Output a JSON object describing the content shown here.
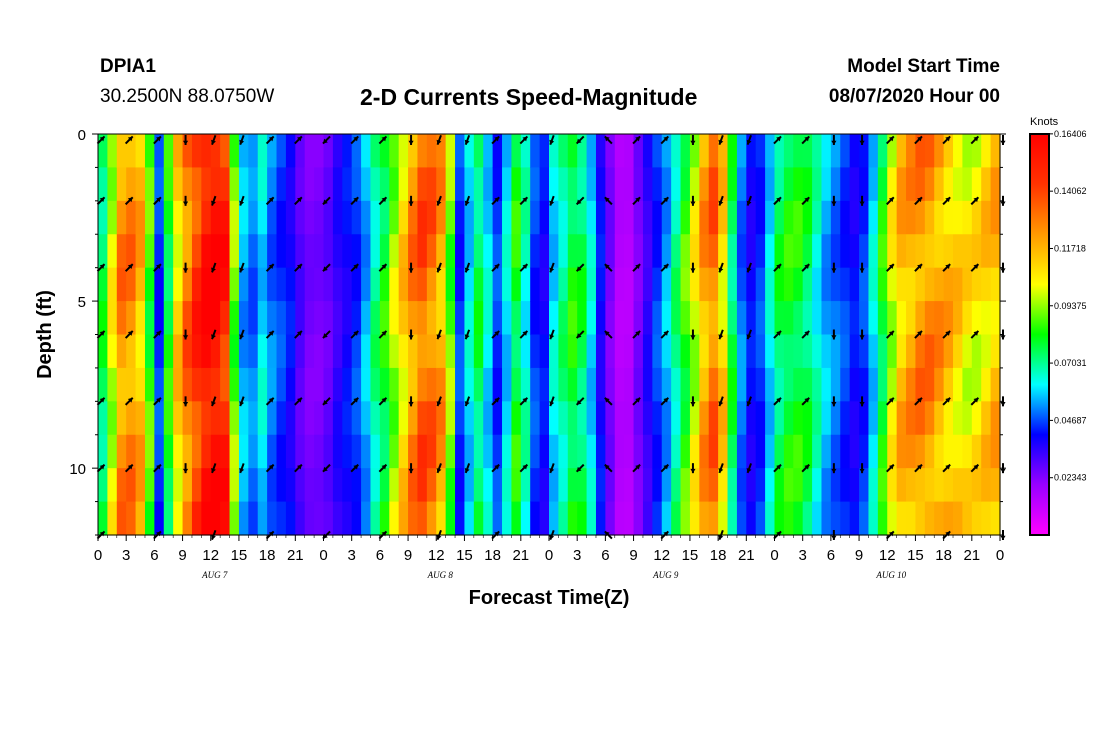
{
  "header": {
    "station_id": "DPIA1",
    "coordinates": "30.2500N 88.0750W",
    "title": "2-D Currents Speed-Magnitude",
    "model_start_label": "Model Start Time",
    "model_start_value": "08/07/2020 Hour 00"
  },
  "colors": {
    "scale": [
      "#ff00ff",
      "#9900ff",
      "#0000ff",
      "#00ffff",
      "#00ff00",
      "#ffff00",
      "#ff9900",
      "#ff3300",
      "#ff0000"
    ],
    "arrow": "#000000",
    "frame": "#000000"
  },
  "chart_data": {
    "type": "heatmap",
    "xlabel": "Forecast Time(Z)",
    "ylabel": "Depth (ft)",
    "x_unit": "hours since 08/07/2020 00Z",
    "x_range": [
      0,
      96
    ],
    "y_range": [
      0,
      12
    ],
    "y_inverted": true,
    "x_tick_labels": [
      "0",
      "3",
      "6",
      "9",
      "12",
      "15",
      "18",
      "21",
      "0",
      "3",
      "6",
      "9",
      "12",
      "15",
      "18",
      "21",
      "0",
      "3",
      "6",
      "9",
      "12",
      "15",
      "18",
      "21",
      "0",
      "3",
      "6",
      "9",
      "12",
      "15",
      "18",
      "21",
      "0"
    ],
    "date_labels": [
      {
        "label": "AUG 7",
        "hour": 12
      },
      {
        "label": "AUG 8",
        "hour": 36
      },
      {
        "label": "AUG 9",
        "hour": 60
      },
      {
        "label": "AUG 10",
        "hour": 84
      }
    ],
    "y_ticks": [
      0,
      5,
      10
    ],
    "colorbar": {
      "unit": "Knots",
      "min": 0.0,
      "max": 0.164,
      "tick_labels": [
        "0.16406",
        "0.14062",
        "0.11718",
        "0.09375",
        "0.07031",
        "0.04687",
        "0.02343"
      ],
      "tick_values": [
        0.16406,
        0.14062,
        0.11718,
        0.09375,
        0.07031,
        0.04687,
        0.02343
      ]
    },
    "speed_profile_by_hour": [
      {
        "h": 0,
        "v": 0.075
      },
      {
        "h": 1,
        "v": 0.1
      },
      {
        "h": 2,
        "v": 0.125
      },
      {
        "h": 3,
        "v": 0.125
      },
      {
        "h": 4,
        "v": 0.115
      },
      {
        "h": 5,
        "v": 0.085
      },
      {
        "h": 6,
        "v": 0.045
      },
      {
        "h": 7,
        "v": 0.08
      },
      {
        "h": 8,
        "v": 0.11
      },
      {
        "h": 9,
        "v": 0.13
      },
      {
        "h": 10,
        "v": 0.145
      },
      {
        "h": 11,
        "v": 0.158
      },
      {
        "h": 12,
        "v": 0.16
      },
      {
        "h": 13,
        "v": 0.15
      },
      {
        "h": 14,
        "v": 0.09
      },
      {
        "h": 15,
        "v": 0.055
      },
      {
        "h": 16,
        "v": 0.05
      },
      {
        "h": 17,
        "v": 0.06
      },
      {
        "h": 18,
        "v": 0.05
      },
      {
        "h": 19,
        "v": 0.045
      },
      {
        "h": 20,
        "v": 0.04
      },
      {
        "h": 21,
        "v": 0.03
      },
      {
        "h": 22,
        "v": 0.025
      },
      {
        "h": 23,
        "v": 0.025
      },
      {
        "h": 24,
        "v": 0.028
      },
      {
        "h": 25,
        "v": 0.035
      },
      {
        "h": 26,
        "v": 0.04
      },
      {
        "h": 27,
        "v": 0.045
      },
      {
        "h": 28,
        "v": 0.055
      },
      {
        "h": 29,
        "v": 0.07
      },
      {
        "h": 30,
        "v": 0.08
      },
      {
        "h": 31,
        "v": 0.095
      },
      {
        "h": 32,
        "v": 0.11
      },
      {
        "h": 33,
        "v": 0.125
      },
      {
        "h": 34,
        "v": 0.135
      },
      {
        "h": 35,
        "v": 0.13
      },
      {
        "h": 36,
        "v": 0.12
      },
      {
        "h": 37,
        "v": 0.09
      },
      {
        "h": 38,
        "v": 0.045
      },
      {
        "h": 39,
        "v": 0.06
      },
      {
        "h": 40,
        "v": 0.075
      },
      {
        "h": 41,
        "v": 0.06
      },
      {
        "h": 42,
        "v": 0.045
      },
      {
        "h": 43,
        "v": 0.06
      },
      {
        "h": 44,
        "v": 0.08
      },
      {
        "h": 45,
        "v": 0.065
      },
      {
        "h": 46,
        "v": 0.045
      },
      {
        "h": 47,
        "v": 0.04
      },
      {
        "h": 48,
        "v": 0.06
      },
      {
        "h": 49,
        "v": 0.07
      },
      {
        "h": 50,
        "v": 0.08
      },
      {
        "h": 51,
        "v": 0.075
      },
      {
        "h": 52,
        "v": 0.06
      },
      {
        "h": 53,
        "v": 0.04
      },
      {
        "h": 54,
        "v": 0.025
      },
      {
        "h": 55,
        "v": 0.015
      },
      {
        "h": 56,
        "v": 0.015
      },
      {
        "h": 57,
        "v": 0.025
      },
      {
        "h": 58,
        "v": 0.035
      },
      {
        "h": 59,
        "v": 0.045
      },
      {
        "h": 60,
        "v": 0.055
      },
      {
        "h": 61,
        "v": 0.07
      },
      {
        "h": 62,
        "v": 0.085
      },
      {
        "h": 63,
        "v": 0.1
      },
      {
        "h": 64,
        "v": 0.12
      },
      {
        "h": 65,
        "v": 0.13
      },
      {
        "h": 66,
        "v": 0.11
      },
      {
        "h": 67,
        "v": 0.075
      },
      {
        "h": 68,
        "v": 0.05
      },
      {
        "h": 69,
        "v": 0.04
      },
      {
        "h": 70,
        "v": 0.045
      },
      {
        "h": 71,
        "v": 0.06
      },
      {
        "h": 72,
        "v": 0.075
      },
      {
        "h": 73,
        "v": 0.08
      },
      {
        "h": 74,
        "v": 0.08
      },
      {
        "h": 75,
        "v": 0.075
      },
      {
        "h": 76,
        "v": 0.065
      },
      {
        "h": 77,
        "v": 0.055
      },
      {
        "h": 78,
        "v": 0.05
      },
      {
        "h": 79,
        "v": 0.045
      },
      {
        "h": 80,
        "v": 0.04
      },
      {
        "h": 81,
        "v": 0.045
      },
      {
        "h": 82,
        "v": 0.06
      },
      {
        "h": 83,
        "v": 0.08
      },
      {
        "h": 84,
        "v": 0.1
      },
      {
        "h": 85,
        "v": 0.115
      },
      {
        "h": 86,
        "v": 0.12
      },
      {
        "h": 87,
        "v": 0.125
      },
      {
        "h": 88,
        "v": 0.125
      },
      {
        "h": 89,
        "v": 0.12
      },
      {
        "h": 90,
        "v": 0.115
      },
      {
        "h": 91,
        "v": 0.11
      },
      {
        "h": 92,
        "v": 0.105
      },
      {
        "h": 93,
        "v": 0.105
      },
      {
        "h": 94,
        "v": 0.11
      },
      {
        "h": 95,
        "v": 0.115
      },
      {
        "h": 96,
        "v": 0.11
      }
    ],
    "arrow_depths_ft": [
      0,
      2,
      4,
      6,
      8,
      10,
      12
    ],
    "arrow_hours": [
      0,
      3,
      6,
      9,
      12,
      15,
      18,
      21,
      24,
      27,
      30,
      33,
      36,
      39,
      42,
      45,
      48,
      51,
      54,
      57,
      60,
      63,
      66,
      69,
      72,
      75,
      78,
      81,
      84,
      87,
      90,
      93,
      96
    ],
    "arrow_directions_deg": [
      45,
      45,
      45,
      180,
      200,
      200,
      45,
      45,
      225,
      45,
      45,
      180,
      200,
      200,
      45,
      45,
      200,
      225,
      315,
      45,
      45,
      180,
      200,
      200,
      45,
      45,
      180,
      180,
      45,
      45,
      45,
      45,
      180
    ]
  }
}
